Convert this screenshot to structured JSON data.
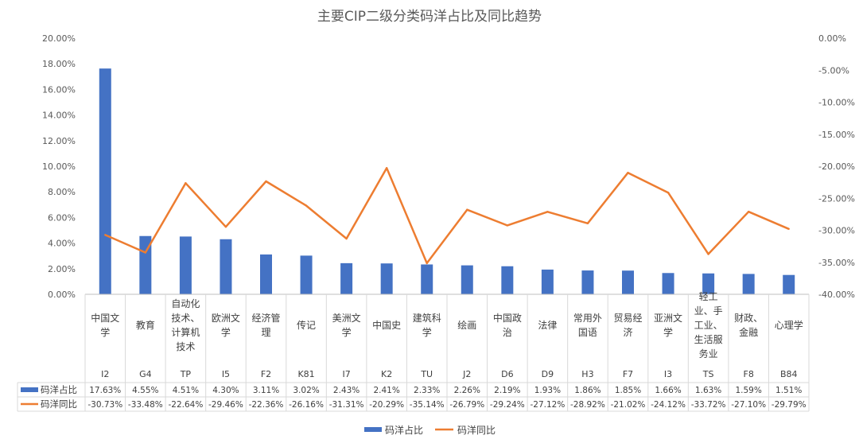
{
  "chart_data": {
    "type": "bar+line",
    "title": "主要CIP二级分类码洋占比及同比趋势",
    "categories": [
      {
        "name": "中国文学",
        "code": "I2"
      },
      {
        "name": "教育",
        "code": "G4"
      },
      {
        "name": "自动化技术、计算机技术",
        "code": "TP"
      },
      {
        "name": "欧洲文学",
        "code": "I5"
      },
      {
        "name": "经济管理",
        "code": "F2"
      },
      {
        "name": "传记",
        "code": "K81"
      },
      {
        "name": "美洲文学",
        "code": "I7"
      },
      {
        "name": "中国史",
        "code": "K2"
      },
      {
        "name": "建筑科学",
        "code": "TU"
      },
      {
        "name": "绘画",
        "code": "J2"
      },
      {
        "name": "中国政治",
        "code": "D6"
      },
      {
        "name": "法律",
        "code": "D9"
      },
      {
        "name": "常用外国语",
        "code": "H3"
      },
      {
        "name": "贸易经济",
        "code": "F7"
      },
      {
        "name": "亚洲文学",
        "code": "I3"
      },
      {
        "name": "轻工业、手工业、生活服务业",
        "code": "TS"
      },
      {
        "name": "财政、金融",
        "code": "F8"
      },
      {
        "name": "心理学",
        "code": "B84"
      }
    ],
    "label_lines": [
      [
        "中国文",
        "学"
      ],
      [
        "教育"
      ],
      [
        "自动化",
        "技术、",
        "计算机",
        "技术"
      ],
      [
        "欧洲文",
        "学"
      ],
      [
        "经济管",
        "理"
      ],
      [
        "传记"
      ],
      [
        "美洲文",
        "学"
      ],
      [
        "中国史"
      ],
      [
        "建筑科",
        "学"
      ],
      [
        "绘画"
      ],
      [
        "中国政",
        "治"
      ],
      [
        "法律"
      ],
      [
        "常用外",
        "国语"
      ],
      [
        "贸易经",
        "济"
      ],
      [
        "亚洲文",
        "学"
      ],
      [
        "轻工",
        "业、手",
        "工业、",
        "生活服",
        "务业"
      ],
      [
        "财政、",
        "金融"
      ],
      [
        "心理学"
      ]
    ],
    "series": [
      {
        "name": "码洋占比",
        "type": "bar",
        "axis": "left",
        "color": "#4472C4",
        "values": [
          17.63,
          4.55,
          4.51,
          4.3,
          3.11,
          3.02,
          2.43,
          2.41,
          2.33,
          2.26,
          2.19,
          1.93,
          1.86,
          1.85,
          1.66,
          1.63,
          1.59,
          1.51
        ],
        "table_labels": [
          "17.63%",
          "4.55%",
          "4.51%",
          "4.30%",
          "3.11%",
          "3.02%",
          "2.43%",
          "2.41%",
          "2.33%",
          "2.26%",
          "2.19%",
          "1.93%",
          "1.86%",
          "1.85%",
          "1.66%",
          "1.63%",
          "1.59%",
          "1.51%"
        ]
      },
      {
        "name": "码洋同比",
        "type": "line",
        "axis": "right",
        "color": "#ED7D31",
        "values": [
          -30.73,
          -33.48,
          -22.64,
          -29.46,
          -22.36,
          -26.16,
          -31.31,
          -20.29,
          -35.14,
          -26.79,
          -29.24,
          -27.12,
          -28.92,
          -21.02,
          -24.12,
          -33.72,
          -27.1,
          -29.79
        ],
        "table_labels": [
          "-30.73%",
          "-33.48%",
          "-22.64%",
          "-29.46%",
          "-22.36%",
          "-26.16%",
          "-31.31%",
          "-20.29%",
          "-35.14%",
          "-26.79%",
          "-29.24%",
          "-27.12%",
          "-28.92%",
          "-21.02%",
          "-24.12%",
          "-33.72%",
          "-27.10%",
          "-29.79%"
        ]
      }
    ],
    "left_axis": {
      "ylim": [
        0,
        20
      ],
      "ticks": [
        "0.00%",
        "2.00%",
        "4.00%",
        "6.00%",
        "8.00%",
        "10.00%",
        "12.00%",
        "14.00%",
        "16.00%",
        "18.00%",
        "20.00%"
      ]
    },
    "right_axis": {
      "ylim": [
        -40,
        0
      ],
      "ticks": [
        "-40.00%",
        "-35.00%",
        "-30.00%",
        "-25.00%",
        "-20.00%",
        "-15.00%",
        "-10.00%",
        "-5.00%",
        "0.00%"
      ]
    },
    "legend": {
      "placement": "bottom",
      "items": [
        "码洋占比",
        "码洋同比"
      ]
    },
    "grid": false,
    "data_table": true
  }
}
